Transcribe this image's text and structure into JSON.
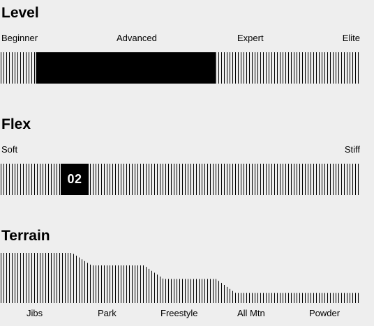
{
  "level": {
    "title": "Level",
    "labels": [
      "Beginner",
      "Advanced",
      "Expert",
      "Elite"
    ],
    "range": [
      0.1,
      0.6
    ]
  },
  "flex": {
    "title": "Flex",
    "min_label": "Soft",
    "max_label": "Stiff",
    "value": "02",
    "value_fraction": 0.2
  },
  "terrain": {
    "title": "Terrain",
    "categories": [
      "Jibs",
      "Park",
      "Freestyle",
      "All Mtn",
      "Powder"
    ],
    "levels": [
      1.0,
      0.75,
      0.48,
      0.2,
      0.2
    ]
  },
  "colors": {
    "background": "#eeeeee",
    "ink": "#000000",
    "badge_text": "#ffffff"
  }
}
